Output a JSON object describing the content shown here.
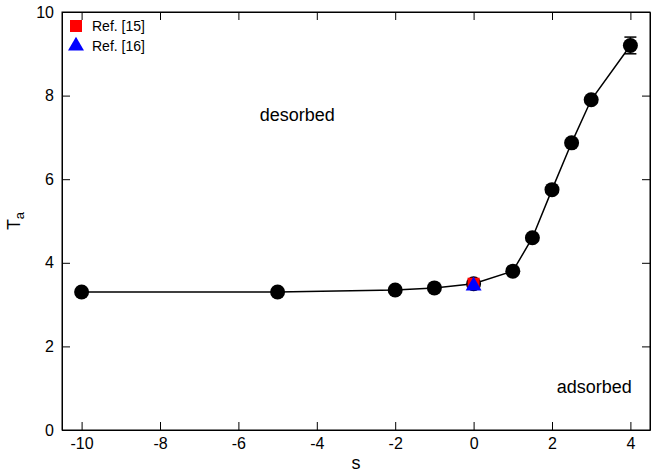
{
  "chart_data": {
    "type": "line",
    "x_label": "s",
    "y_label": "Ta",
    "xlim": [
      -10.5,
      4.5
    ],
    "xticks": [
      -10,
      -8,
      -6,
      -4,
      -2,
      0,
      2,
      4
    ],
    "ylim": [
      0,
      10
    ],
    "yticks": [
      0,
      2,
      4,
      6,
      8,
      10
    ],
    "grid": false,
    "legend": "upper left",
    "series": [
      {
        "x": [
          -10,
          -5,
          -2,
          -1,
          0,
          1,
          1.5,
          2,
          2.5,
          3,
          4
        ],
        "values": [
          3.3,
          3.3,
          3.35,
          3.4,
          3.5,
          3.8,
          4.6,
          5.75,
          6.87,
          7.9,
          9.2
        ],
        "errors": [
          null,
          null,
          null,
          null,
          null,
          null,
          null,
          null,
          null,
          null,
          0.2
        ],
        "color": "#000000",
        "marker": "circle",
        "line_style": "solid"
      },
      {
        "name": "Ref. [15]",
        "x": [
          0
        ],
        "values": [
          3.5
        ],
        "color": "#ff0000",
        "marker": "square",
        "type": "scatter"
      },
      {
        "name": "Ref. [16]",
        "x": [
          0
        ],
        "values": [
          3.45
        ],
        "color": "#0000ff",
        "marker": "triangle",
        "type": "scatter"
      }
    ],
    "annotations": [
      {
        "text": "desorbed",
        "x": -4.5,
        "y": 7.5
      },
      {
        "text": "adsorbed",
        "x": 3.08,
        "y": 1.0
      }
    ]
  }
}
